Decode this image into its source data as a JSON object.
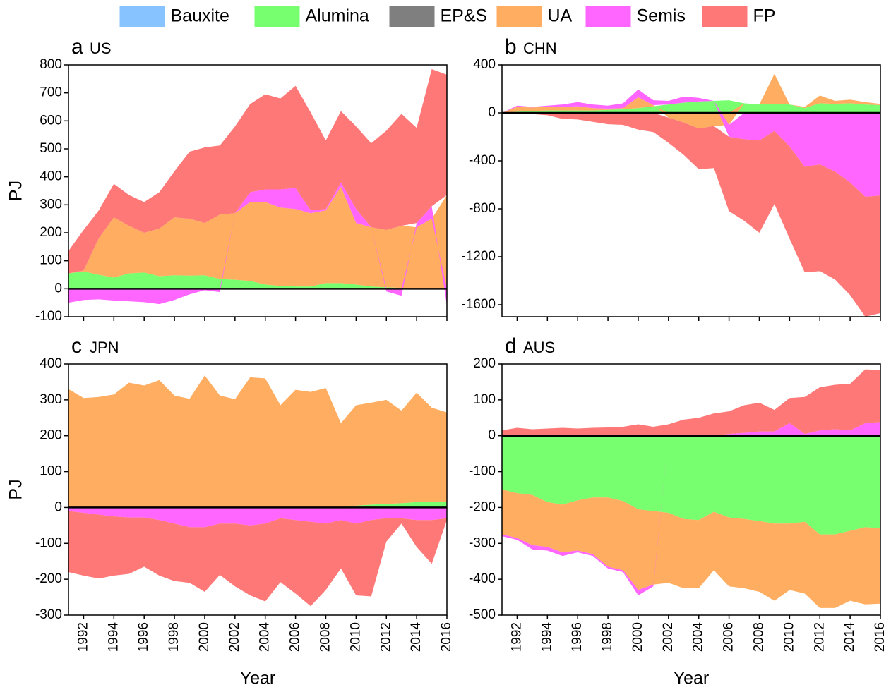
{
  "chart_data": [
    {
      "type": "area",
      "label": "a",
      "title": "US",
      "ylabel": "PJ",
      "xtick_labels": false,
      "legend": "top",
      "x": [
        1991,
        1992,
        1993,
        1994,
        1995,
        1996,
        1997,
        1998,
        1999,
        2000,
        2001,
        2002,
        2003,
        2004,
        2005,
        2006,
        2007,
        2008,
        2009,
        2010,
        2011,
        2012,
        2013,
        2014,
        2015,
        2016
      ],
      "xlim": [
        1991,
        2016
      ],
      "xticks": [
        1992,
        1994,
        1996,
        1998,
        2000,
        2002,
        2004,
        2006,
        2008,
        2010,
        2012,
        2014,
        2016
      ],
      "ylim": [
        -100,
        800
      ],
      "yticks": [
        -100,
        0,
        100,
        200,
        300,
        400,
        500,
        600,
        700,
        800
      ],
      "series": [
        {
          "name": "Bauxite",
          "color": "#87c3ff",
          "values": [
            0,
            0,
            0,
            0,
            0,
            0,
            0,
            0,
            0,
            0,
            0,
            0,
            0,
            0,
            0,
            0,
            0,
            0,
            0,
            0,
            0,
            0,
            0,
            0,
            0,
            0
          ]
        },
        {
          "name": "Alumina",
          "color": "#77ff70",
          "values": [
            55,
            62,
            50,
            40,
            55,
            58,
            45,
            48,
            47,
            48,
            35,
            32,
            28,
            15,
            10,
            8,
            8,
            20,
            20,
            15,
            8,
            5,
            3,
            0,
            0,
            0
          ]
        },
        {
          "name": "EP&S",
          "color": "#7f7f7f",
          "values": [
            0,
            0,
            0,
            0,
            0,
            0,
            0,
            0,
            0,
            0,
            0,
            0,
            0,
            0,
            0,
            0,
            0,
            0,
            0,
            0,
            0,
            0,
            0,
            0,
            0,
            0
          ]
        },
        {
          "name": "UA",
          "color": "#ffad60",
          "values": [
            0,
            3,
            130,
            215,
            170,
            142,
            170,
            207,
            203,
            187,
            230,
            238,
            282,
            295,
            280,
            277,
            262,
            260,
            345,
            220,
            212,
            205,
            222,
            220,
            250,
            335
          ]
        },
        {
          "name": "Semis",
          "color": "#ff66ff",
          "values": [
            -50,
            -40,
            -38,
            -42,
            -45,
            -48,
            -55,
            -40,
            -20,
            -5,
            -12,
            0,
            35,
            45,
            65,
            75,
            10,
            5,
            15,
            50,
            0,
            -10,
            -25,
            15,
            45,
            -60
          ]
        },
        {
          "name": "FP",
          "color": "#ff7878",
          "values": [
            80,
            145,
            100,
            120,
            110,
            110,
            130,
            165,
            240,
            270,
            247,
            310,
            315,
            340,
            325,
            365,
            350,
            245,
            255,
            295,
            300,
            355,
            400,
            340,
            490,
            430
          ]
        }
      ]
    },
    {
      "type": "area",
      "label": "b",
      "title": "CHN",
      "xtick_labels": false,
      "x": [
        1991,
        1992,
        1993,
        1994,
        1995,
        1996,
        1997,
        1998,
        1999,
        2000,
        2001,
        2002,
        2003,
        2004,
        2005,
        2006,
        2007,
        2008,
        2009,
        2010,
        2011,
        2012,
        2013,
        2014,
        2015,
        2016
      ],
      "xlim": [
        1991,
        2016
      ],
      "xticks": [
        1992,
        1994,
        1996,
        1998,
        2000,
        2002,
        2004,
        2006,
        2008,
        2010,
        2012,
        2014,
        2016
      ],
      "ylim": [
        -1700,
        400
      ],
      "yticks": [
        -1600,
        -1200,
        -800,
        -400,
        0,
        400
      ],
      "series": [
        {
          "name": "Bauxite",
          "color": "#87c3ff",
          "values": [
            0,
            0,
            0,
            0,
            0,
            0,
            0,
            0,
            0,
            0,
            0,
            0,
            0,
            0,
            0,
            0,
            0,
            0,
            0,
            0,
            0,
            0,
            0,
            0,
            0,
            0
          ]
        },
        {
          "name": "Alumina",
          "color": "#77ff70",
          "values": [
            0,
            10,
            15,
            20,
            20,
            20,
            20,
            25,
            30,
            40,
            55,
            70,
            85,
            95,
            100,
            105,
            80,
            70,
            75,
            70,
            40,
            80,
            75,
            80,
            70,
            65
          ]
        },
        {
          "name": "EP&S",
          "color": "#7f7f7f",
          "values": [
            0,
            0,
            0,
            0,
            0,
            0,
            0,
            0,
            0,
            0,
            0,
            0,
            0,
            0,
            0,
            0,
            0,
            0,
            0,
            0,
            0,
            0,
            0,
            0,
            0,
            0
          ]
        },
        {
          "name": "UA",
          "color": "#ffad60",
          "values": [
            0,
            40,
            30,
            30,
            30,
            35,
            20,
            10,
            10,
            90,
            10,
            -40,
            -80,
            -130,
            -110,
            -100,
            0,
            0,
            250,
            0,
            10,
            65,
            25,
            30,
            20,
            10
          ]
        },
        {
          "name": "Semis",
          "color": "#ff66ff",
          "values": [
            0,
            10,
            5,
            10,
            20,
            35,
            30,
            25,
            40,
            65,
            40,
            30,
            50,
            30,
            0,
            -100,
            -220,
            -230,
            -150,
            -280,
            -450,
            -430,
            -490,
            -580,
            -700,
            -690
          ]
        },
        {
          "name": "FP",
          "color": "#ff7878",
          "values": [
            0,
            -5,
            -10,
            -20,
            -50,
            -55,
            -75,
            -95,
            -100,
            -140,
            -160,
            -210,
            -270,
            -340,
            -350,
            -620,
            -680,
            -770,
            -610,
            -770,
            -880,
            -890,
            -900,
            -940,
            -1000,
            -980
          ]
        }
      ]
    },
    {
      "type": "area",
      "label": "c",
      "title": "JPN",
      "ylabel": "PJ",
      "xlabel": "Year",
      "xtick_labels": true,
      "x": [
        1991,
        1992,
        1993,
        1994,
        1995,
        1996,
        1997,
        1998,
        1999,
        2000,
        2001,
        2002,
        2003,
        2004,
        2005,
        2006,
        2007,
        2008,
        2009,
        2010,
        2011,
        2012,
        2013,
        2014,
        2015,
        2016
      ],
      "xlim": [
        1991,
        2016
      ],
      "xticks": [
        1992,
        1994,
        1996,
        1998,
        2000,
        2002,
        2004,
        2006,
        2008,
        2010,
        2012,
        2014,
        2016
      ],
      "ylim": [
        -300,
        400
      ],
      "yticks": [
        -300,
        -200,
        -100,
        0,
        100,
        200,
        300,
        400
      ],
      "series": [
        {
          "name": "Bauxite",
          "color": "#87c3ff",
          "values": [
            0,
            0,
            0,
            0,
            0,
            0,
            0,
            0,
            0,
            0,
            0,
            0,
            0,
            0,
            0,
            0,
            0,
            0,
            0,
            0,
            0,
            0,
            0,
            0,
            0,
            0
          ]
        },
        {
          "name": "Alumina",
          "color": "#77ff70",
          "values": [
            0,
            0,
            0,
            0,
            0,
            0,
            0,
            0,
            0,
            0,
            0,
            0,
            0,
            0,
            0,
            0,
            0,
            0,
            0,
            5,
            8,
            10,
            12,
            15,
            15,
            15
          ]
        },
        {
          "name": "EP&S",
          "color": "#7f7f7f",
          "values": [
            0,
            0,
            0,
            0,
            0,
            0,
            0,
            0,
            0,
            0,
            0,
            0,
            0,
            0,
            0,
            0,
            0,
            0,
            0,
            0,
            0,
            0,
            0,
            0,
            0,
            0
          ]
        },
        {
          "name": "UA",
          "color": "#ffad60",
          "values": [
            330,
            305,
            308,
            315,
            348,
            340,
            355,
            312,
            303,
            368,
            312,
            302,
            363,
            360,
            285,
            328,
            322,
            333,
            235,
            280,
            284,
            290,
            258,
            305,
            263,
            250
          ]
        },
        {
          "name": "Semis",
          "color": "#ff66ff",
          "values": [
            -10,
            -15,
            -20,
            -25,
            -28,
            -28,
            -35,
            -45,
            -55,
            -55,
            -45,
            -45,
            -50,
            -45,
            -30,
            -35,
            -40,
            -45,
            -35,
            -45,
            -35,
            -30,
            -30,
            -35,
            -35,
            -30
          ]
        },
        {
          "name": "FP",
          "color": "#ff7878",
          "values": [
            -170,
            -175,
            -178,
            -165,
            -157,
            -137,
            -155,
            -160,
            -155,
            -180,
            -143,
            -175,
            -195,
            -217,
            -178,
            -205,
            -235,
            -185,
            -135,
            -200,
            -213,
            -65,
            -15,
            -75,
            -122,
            -5
          ]
        }
      ]
    },
    {
      "type": "area",
      "label": "d",
      "title": "AUS",
      "xlabel": "Year",
      "xtick_labels": true,
      "x": [
        1991,
        1992,
        1993,
        1994,
        1995,
        1996,
        1997,
        1998,
        1999,
        2000,
        2001,
        2002,
        2003,
        2004,
        2005,
        2006,
        2007,
        2008,
        2009,
        2010,
        2011,
        2012,
        2013,
        2014,
        2015,
        2016
      ],
      "xlim": [
        1991,
        2016
      ],
      "xticks": [
        1992,
        1994,
        1996,
        1998,
        2000,
        2002,
        2004,
        2006,
        2008,
        2010,
        2012,
        2014,
        2016
      ],
      "ylim": [
        -500,
        200
      ],
      "yticks": [
        -500,
        -400,
        -300,
        -200,
        -100,
        0,
        100,
        200
      ],
      "series": [
        {
          "name": "Bauxite",
          "color": "#87c3ff",
          "values": [
            0,
            0,
            0,
            0,
            0,
            0,
            0,
            0,
            0,
            0,
            0,
            0,
            0,
            0,
            0,
            0,
            0,
            0,
            0,
            0,
            0,
            0,
            0,
            0,
            0,
            0
          ]
        },
        {
          "name": "Alumina",
          "color": "#77ff70",
          "values": [
            -150,
            -160,
            -165,
            -185,
            -192,
            -180,
            -172,
            -172,
            -182,
            -205,
            -210,
            -215,
            -232,
            -235,
            -212,
            -228,
            -232,
            -238,
            -245,
            -245,
            -240,
            -275,
            -275,
            -265,
            -255,
            -258
          ]
        },
        {
          "name": "EP&S",
          "color": "#7f7f7f",
          "values": [
            0,
            0,
            0,
            0,
            0,
            0,
            0,
            0,
            0,
            0,
            0,
            0,
            0,
            0,
            0,
            0,
            0,
            0,
            0,
            0,
            0,
            0,
            0,
            0,
            0,
            0
          ]
        },
        {
          "name": "UA",
          "color": "#ffad60",
          "values": [
            -125,
            -125,
            -140,
            -125,
            -133,
            -140,
            -158,
            -193,
            -193,
            -225,
            -205,
            -195,
            -193,
            -190,
            -163,
            -192,
            -193,
            -197,
            -215,
            -185,
            -200,
            -205,
            -205,
            -195,
            -215,
            -210
          ]
        },
        {
          "name": "Semis",
          "color": "#ff66ff",
          "values": [
            -5,
            -5,
            -12,
            -10,
            -10,
            -5,
            -5,
            -5,
            -5,
            -15,
            -5,
            0,
            0,
            0,
            0,
            5,
            8,
            12,
            12,
            35,
            5,
            15,
            18,
            15,
            35,
            38
          ]
        },
        {
          "name": "FP",
          "color": "#ff7878",
          "values": [
            15,
            22,
            18,
            20,
            22,
            20,
            22,
            23,
            25,
            32,
            25,
            32,
            45,
            50,
            62,
            63,
            77,
            80,
            60,
            70,
            103,
            120,
            124,
            130,
            150,
            145
          ]
        }
      ]
    }
  ]
}
